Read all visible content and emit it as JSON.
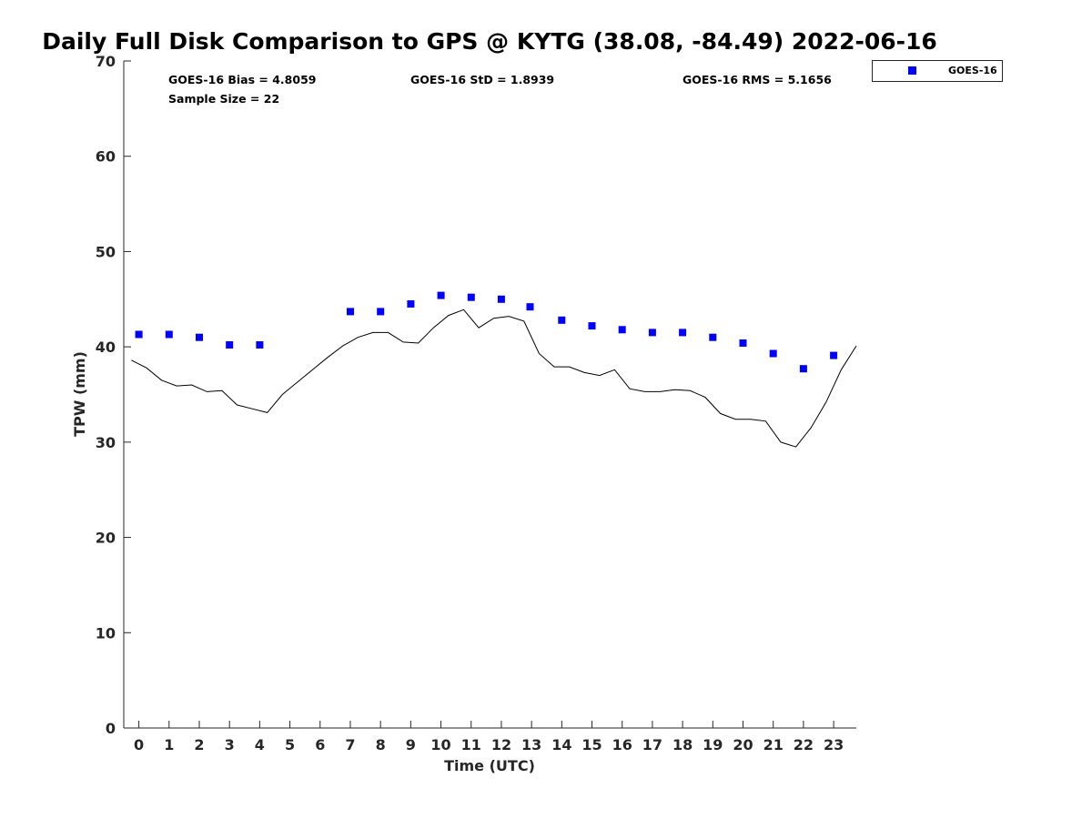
{
  "chart_data": {
    "type": "scatter",
    "title": "Daily Full Disk Comparison to GPS @ KYTG (38.08, -84.49) 2022-06-16",
    "xlabel": "Time (UTC)",
    "ylabel": "TPW (mm)",
    "xlim": [
      -0.5,
      23.75
    ],
    "ylim": [
      0,
      70
    ],
    "x_ticks": [
      0,
      1,
      2,
      3,
      4,
      5,
      6,
      7,
      8,
      9,
      10,
      11,
      12,
      13,
      14,
      15,
      16,
      17,
      18,
      19,
      20,
      21,
      22,
      23
    ],
    "y_ticks": [
      0,
      10,
      20,
      30,
      40,
      50,
      60,
      70
    ],
    "grid": false,
    "legend_position": "outside-top-right",
    "stats": {
      "bias": "GOES-16 Bias = 4.8059",
      "std": "GOES-16 StD = 1.8939",
      "rms": "GOES-16 RMS = 5.1656",
      "sample": "Sample Size = 22"
    },
    "series": [
      {
        "name": "GOES-16",
        "kind": "scatter",
        "marker": "square",
        "color": "#0000ff",
        "x": [
          0,
          1,
          2,
          3,
          4,
          7,
          8,
          9,
          10,
          11,
          12,
          12.95,
          14,
          15,
          16,
          17,
          18,
          19,
          20,
          21,
          22,
          23
        ],
        "y": [
          41.3,
          41.3,
          41.0,
          40.2,
          40.2,
          43.7,
          43.7,
          44.5,
          45.4,
          45.2,
          45.0,
          44.2,
          42.8,
          42.2,
          41.8,
          41.5,
          41.5,
          41.0,
          40.4,
          39.3,
          37.7,
          39.1
        ]
      },
      {
        "kind": "line",
        "color": "#000000",
        "x": [
          -0.25,
          0.25,
          0.75,
          1.25,
          1.75,
          2.25,
          2.75,
          3.25,
          3.75,
          4.25,
          4.75,
          5.25,
          5.75,
          6.25,
          6.75,
          7.25,
          7.75,
          8.25,
          8.75,
          9.25,
          9.75,
          10.25,
          10.75,
          11.25,
          11.75,
          12.25,
          12.75,
          13.25,
          13.75,
          14.25,
          14.75,
          15.25,
          15.75,
          16.25,
          16.75,
          17.25,
          17.75,
          18.25,
          18.75,
          19.25,
          19.75,
          20.25,
          20.75,
          21.25,
          21.75,
          22.25,
          22.75,
          23.25,
          23.75
        ],
        "y": [
          38.6,
          37.8,
          36.5,
          35.9,
          36.0,
          35.3,
          35.4,
          33.9,
          33.5,
          33.1,
          35.0,
          36.3,
          37.6,
          38.9,
          40.1,
          41.0,
          41.5,
          41.5,
          40.5,
          40.4,
          42.0,
          43.3,
          43.9,
          42.0,
          43.0,
          43.2,
          42.7,
          39.3,
          37.9,
          37.9,
          37.3,
          37.0,
          37.6,
          35.6,
          35.3,
          35.3,
          35.5,
          35.4,
          34.7,
          33.0,
          32.4,
          32.4,
          32.2,
          30.0,
          29.5,
          31.5,
          34.2,
          37.6,
          40.1
        ]
      }
    ]
  }
}
